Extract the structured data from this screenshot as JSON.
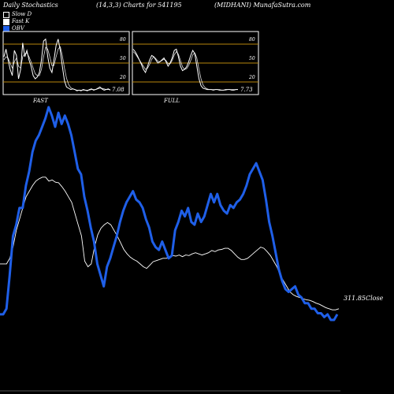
{
  "header": {
    "title": "Daily Stochastics",
    "params": "(14,3,3) Charts for 541195",
    "symbol": "(MIDHANI) MunafaSutra.com"
  },
  "legend": [
    {
      "label": "Slow  D",
      "color": "#000000",
      "border": "#ffffff"
    },
    {
      "label": "Fast K",
      "color": "#ffffff",
      "border": "#ffffff"
    },
    {
      "label": "OBV",
      "color": "#1f5fe8",
      "border": "#1f5fe8"
    }
  ],
  "colors": {
    "obv": "#1f5fe8",
    "close": "#ffffff",
    "level_line": "#b8860b",
    "panel_border": "#ffffff"
  },
  "chart_data": [
    {
      "type": "line",
      "panel": "fast",
      "label": "FAST",
      "y_ticks": [
        20,
        50,
        80
      ],
      "ylim": [
        0,
        100
      ],
      "last_value_label": "7.08",
      "series": [
        {
          "values": [
            60,
            72,
            55,
            40,
            30,
            70,
            62,
            25,
            40,
            82,
            60,
            70,
            55,
            45,
            30,
            25,
            28,
            35,
            55,
            85,
            88,
            60,
            42,
            35,
            55,
            78,
            88,
            70,
            45,
            22,
            12,
            10,
            8,
            9,
            8,
            6,
            7,
            6,
            8,
            7,
            6,
            8,
            9,
            7,
            8,
            10,
            12,
            9,
            7,
            8,
            9,
            7
          ]
        },
        {
          "values": [
            55,
            60,
            58,
            50,
            42,
            52,
            58,
            45,
            42,
            60,
            65,
            66,
            60,
            52,
            42,
            33,
            30,
            30,
            40,
            60,
            75,
            72,
            60,
            46,
            46,
            60,
            72,
            76,
            62,
            42,
            26,
            16,
            11,
            9,
            8,
            7,
            7,
            7,
            7,
            7,
            7,
            7,
            8,
            8,
            8,
            9,
            10,
            10,
            9,
            8,
            8,
            8
          ]
        }
      ]
    },
    {
      "type": "line",
      "panel": "full",
      "label": "FULL",
      "y_ticks": [
        20,
        50,
        80
      ],
      "ylim": [
        0,
        100
      ],
      "last_value_label": "7.73",
      "series": [
        {
          "values": [
            72,
            68,
            62,
            55,
            48,
            40,
            35,
            45,
            55,
            62,
            60,
            55,
            50,
            52,
            55,
            58,
            52,
            45,
            50,
            58,
            70,
            72,
            60,
            45,
            38,
            40,
            44,
            52,
            62,
            70,
            65,
            45,
            25,
            14,
            10,
            9,
            8,
            8,
            8,
            7,
            8,
            8,
            7,
            7,
            7,
            8,
            8,
            8,
            7,
            7,
            8,
            8
          ]
        },
        {
          "values": [
            68,
            65,
            60,
            55,
            50,
            45,
            40,
            42,
            48,
            56,
            60,
            57,
            53,
            52,
            54,
            56,
            54,
            49,
            49,
            54,
            63,
            68,
            64,
            54,
            44,
            40,
            41,
            46,
            54,
            63,
            66,
            58,
            40,
            25,
            15,
            11,
            9,
            8,
            8,
            8,
            8,
            8,
            8,
            7,
            7,
            7,
            8,
            8,
            8,
            8,
            8,
            8
          ]
        }
      ]
    },
    {
      "type": "line",
      "panel": "main",
      "last_value_label": "311.85Close",
      "series": [
        {
          "name": "OBV",
          "values": [
            10,
            10,
            20,
            80,
            150,
            170,
            200,
            200,
            240,
            265,
            300,
            320,
            330,
            345,
            360,
            380,
            365,
            345,
            370,
            350,
            365,
            350,
            330,
            300,
            270,
            260,
            220,
            195,
            165,
            140,
            100,
            80,
            60,
            95,
            110,
            130,
            150,
            175,
            195,
            210,
            220,
            230,
            215,
            210,
            200,
            180,
            165,
            140,
            130,
            125,
            140,
            125,
            110,
            115,
            160,
            175,
            195,
            185,
            200,
            175,
            170,
            190,
            175,
            185,
            205,
            225,
            210,
            225,
            205,
            195,
            190,
            205,
            200,
            210,
            215,
            225,
            240,
            260,
            270,
            280,
            265,
            250,
            215,
            175,
            150,
            120,
            90,
            70,
            55,
            50,
            55,
            60,
            45,
            40,
            30,
            30,
            20,
            20,
            12,
            12,
            5,
            10,
            0,
            0,
            10
          ]
        },
        {
          "name": "Close",
          "values": [
            100,
            100,
            100,
            110,
            130,
            160,
            180,
            200,
            220,
            230,
            240,
            248,
            252,
            255,
            255,
            248,
            250,
            246,
            245,
            238,
            230,
            220,
            210,
            190,
            170,
            150,
            105,
            95,
            100,
            130,
            152,
            164,
            170,
            174,
            170,
            160,
            150,
            138,
            126,
            118,
            112,
            108,
            105,
            100,
            95,
            92,
            98,
            104,
            106,
            108,
            110,
            110,
            112,
            115,
            114,
            116,
            113,
            116,
            115,
            118,
            120,
            118,
            116,
            118,
            120,
            124,
            122,
            125,
            126,
            128,
            128,
            124,
            118,
            112,
            108,
            108,
            110,
            115,
            120,
            125,
            130,
            128,
            122,
            115,
            105,
            95,
            80,
            70,
            60,
            50,
            45,
            42,
            40,
            38,
            36,
            35,
            33,
            30,
            28,
            25,
            22,
            20,
            18,
            18,
            20
          ]
        }
      ]
    }
  ],
  "panel_labels": {
    "fast": "FAST",
    "full": "FULL"
  },
  "ticks": {
    "t80": "80",
    "t50": "50",
    "t20": "20"
  },
  "last_values": {
    "fast": "7.08",
    "full": "7.73",
    "close": "311.85Close"
  }
}
